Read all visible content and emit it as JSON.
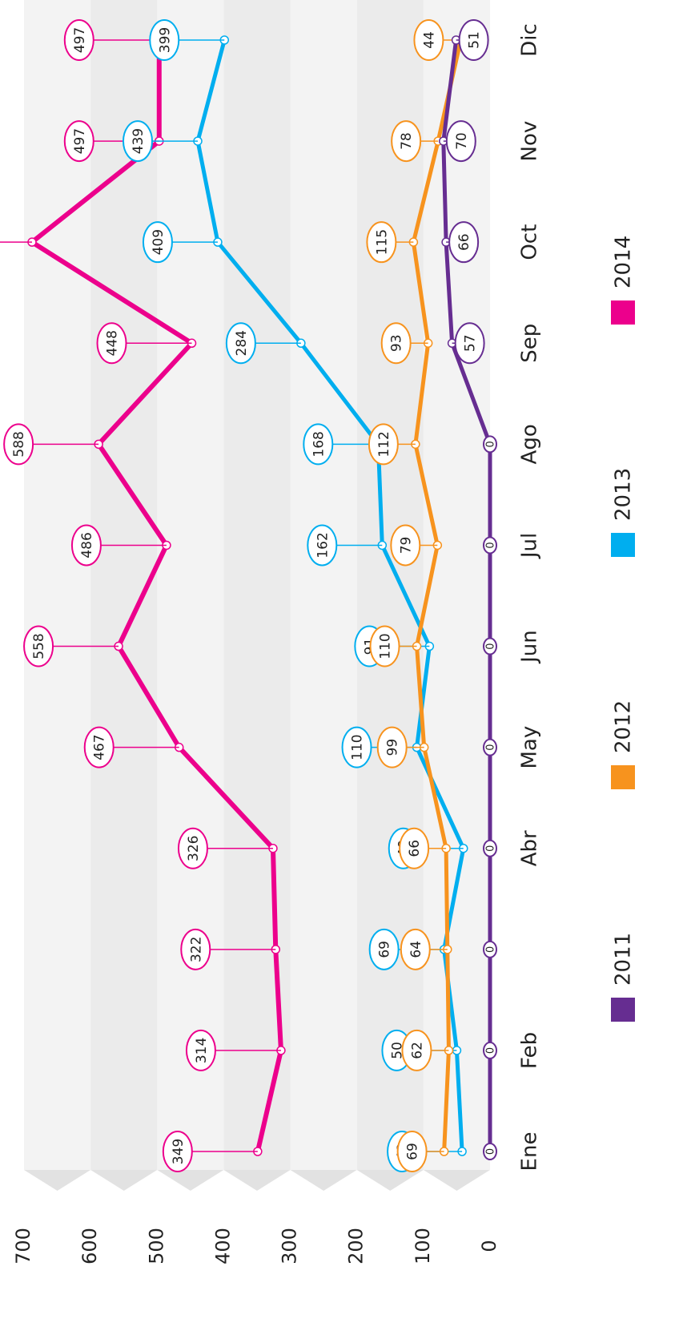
{
  "chart_data": {
    "type": "line",
    "categories": [
      "Ene",
      "Feb",
      null,
      "Abr",
      "May",
      "Jun",
      "Jul",
      "Ago",
      "Sep",
      "Oct",
      "Nov",
      "Dic"
    ],
    "series": [
      {
        "name": "2011",
        "color": "#662d91",
        "values": [
          0,
          0,
          0,
          0,
          0,
          0,
          0,
          0,
          57,
          66,
          70,
          51
        ]
      },
      {
        "name": "2012",
        "color": "#f7931e",
        "values": [
          69,
          62,
          64,
          66,
          99,
          110,
          79,
          112,
          93,
          115,
          78,
          44
        ]
      },
      {
        "name": "2013",
        "color": "#00aeef",
        "values": [
          42,
          50,
          69,
          40,
          110,
          91,
          162,
          168,
          284,
          409,
          439,
          399
        ]
      },
      {
        "name": "2014",
        "color": "#ec008c",
        "values": [
          349,
          314,
          322,
          326,
          467,
          558,
          486,
          588,
          448,
          688,
          497,
          497
        ]
      }
    ],
    "ylim": [
      0,
      700
    ],
    "yticks": [
      0,
      100,
      200,
      300,
      400,
      500,
      600,
      700
    ],
    "grid": true
  }
}
